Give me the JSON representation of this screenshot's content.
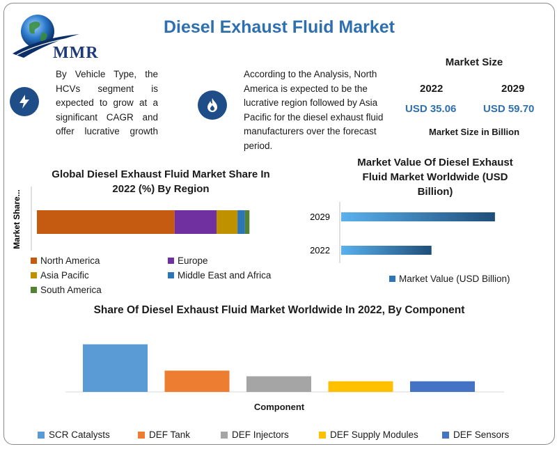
{
  "header": {
    "logo_text": "MMR",
    "title": "Diesel Exhaust Fluid Market"
  },
  "info_blocks": [
    {
      "icon": "lightning-bolt-icon",
      "text": "By Vehicle Type, the HCVs segment is expected to grow at a significant CAGR and offer lucrative growth"
    },
    {
      "icon": "flame-icon",
      "text": "According to the Analysis, North America is expected to be the lucrative region followed by Asia Pacific for the diesel exhaust fluid manufacturers over the forecast period."
    }
  ],
  "market_size": {
    "title": "Market Size",
    "year_1": "2022",
    "year_2": "2029",
    "value_1": "USD 35.06",
    "value_2": "USD 59.70",
    "unit_label": "Market Size in Billion"
  },
  "colors": {
    "title_blue": "#2e6fb0",
    "north_america": "#c55a11",
    "europe": "#7030a0",
    "asia_pacific": "#bf9000",
    "middle_east_africa": "#2e75b6",
    "south_america": "#548235",
    "scr": "#5b9bd5",
    "def_tank": "#ed7d31",
    "def_injectors": "#a5a5a5",
    "def_supply": "#ffc000",
    "def_sensors": "#4472c4"
  },
  "chart_data": [
    {
      "type": "bar",
      "orientation": "horizontal-stacked",
      "title": "Global Diesel Exhaust Fluid Market Share In 2022 (%) By Region",
      "ylabel": "Market Share...",
      "series": [
        {
          "name": "North America",
          "values": [
            46
          ]
        },
        {
          "name": "Europe",
          "values": [
            14
          ]
        },
        {
          "name": "Asia Pacific",
          "values": [
            7
          ]
        },
        {
          "name": "Middle East and Africa",
          "values": [
            2.5
          ]
        },
        {
          "name": "South America",
          "values": [
            1.5
          ]
        }
      ],
      "legend_position": "bottom"
    },
    {
      "type": "bar",
      "orientation": "horizontal",
      "title": "Market Value Of Diesel Exhaust Fluid Market Worldwide (USD Billion)",
      "categories": [
        "2029",
        "2022"
      ],
      "values": [
        59.7,
        35.06
      ],
      "series_name": "Market Value (USD Billion)",
      "legend_position": "bottom"
    },
    {
      "type": "bar",
      "title": "Share Of Diesel Exhaust Fluid Market Worldwide In 2022, By Component",
      "xlabel": "Component",
      "categories": [
        "SCR Catalysts",
        "DEF Tank",
        "DEF Injectors",
        "DEF Supply Modules",
        "DEF Sensors"
      ],
      "values": [
        38,
        17,
        12.5,
        8.5,
        8.5
      ],
      "legend_position": "bottom"
    }
  ]
}
